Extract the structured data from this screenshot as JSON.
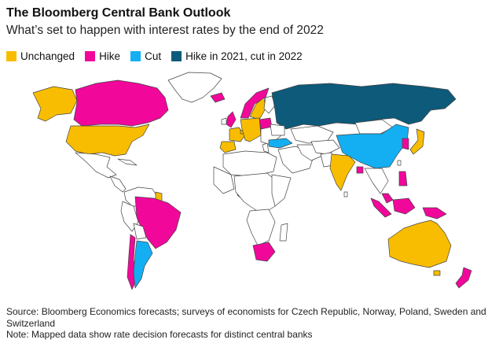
{
  "header": {
    "title": "The Bloomberg Central Bank Outlook",
    "subtitle": "What’s set to happen with interest rates by the end of 2022"
  },
  "legend": [
    {
      "label": "Unchanged",
      "color": "#f8bd00"
    },
    {
      "label": "Hike",
      "color": "#f2079b"
    },
    {
      "label": "Cut",
      "color": "#13aff2"
    },
    {
      "label": "Hike in 2021, cut in 2022",
      "color": "#0d5a7a"
    }
  ],
  "colors": {
    "none": "#ffffff",
    "border": "#444444"
  },
  "footer": {
    "source": "Source: Bloomberg Economics forecasts; surveys of economists for Czech Republic, Norway, Poland, Sweden and Switzerland",
    "note": "Note: Mapped data show rate decision forecasts for distinct central banks"
  }
}
